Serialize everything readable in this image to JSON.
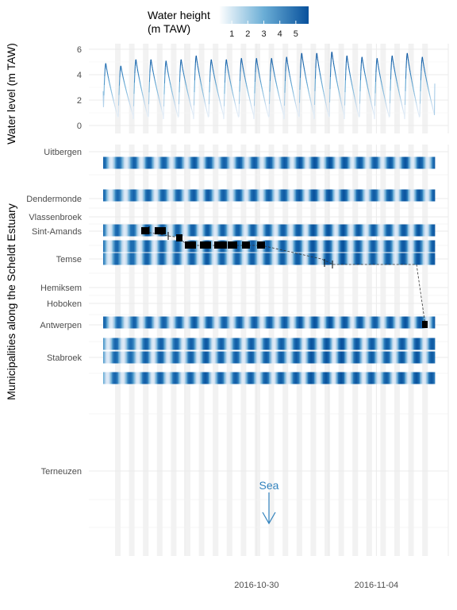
{
  "chart_data": [
    {
      "type": "line",
      "ylabel": "Water level (m TAW)",
      "y_ticks": [
        "0",
        "2",
        "4",
        "6"
      ],
      "ylim": [
        -0.3,
        6.3
      ],
      "x_range_days": [
        "2016-10-23",
        "2016-11-07"
      ],
      "series": [
        {
          "tide_cycles": 22,
          "high_water_peaks": [
            4.9,
            4.7,
            5.2,
            5.2,
            5.1,
            5.2,
            5.5,
            5.2,
            5.2,
            5.3,
            5.3,
            5.3,
            5.4,
            5.7,
            5.7,
            5.8,
            5.5,
            5.4,
            5.3,
            5.5,
            5.7,
            5.4
          ],
          "low_water_min": 0.5
        }
      ]
    },
    {
      "type": "heatmap",
      "ylabel": "Municipalities along the Scheldt Estuary",
      "categories": [
        "Uitbergen",
        "Dendermonde",
        "Vlassenbroek",
        "Sint-Amands",
        "Temse",
        "Hemiksem",
        "Hoboken",
        "Antwerpen",
        "Stabroek",
        "Terneuzen"
      ],
      "x_tick_labels": [
        "2016-10-30",
        "2016-11-04"
      ],
      "legend": {
        "title_line1": "Water height",
        "title_line2": "(m TAW)",
        "ticks": [
          "1",
          "2",
          "3",
          "4",
          "5"
        ],
        "range": [
          0.2,
          5.8
        ],
        "color_low": "#ffffff",
        "color_high": "#08519c",
        "placement": "top"
      },
      "annotation": {
        "text": "Sea",
        "color": "#3182bd"
      }
    }
  ]
}
